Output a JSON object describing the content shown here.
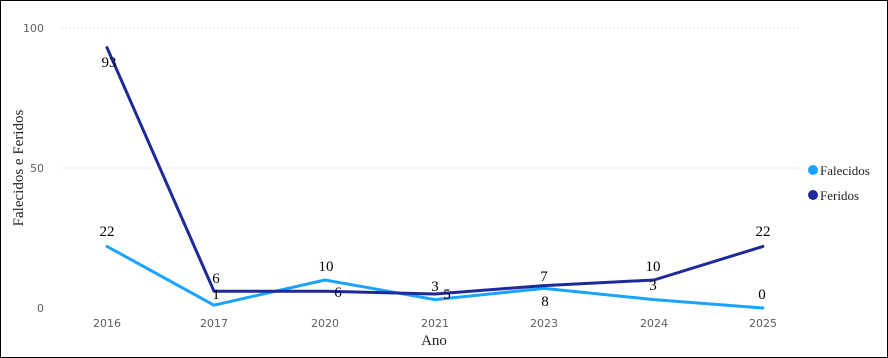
{
  "chart_data": {
    "type": "line",
    "title": "",
    "xlabel": "Ano",
    "ylabel": "Falecidos e Feridos",
    "categories": [
      "2016",
      "2017",
      "2020",
      "2021",
      "2023",
      "2024",
      "2025"
    ],
    "ylim": [
      0,
      100
    ],
    "yticks": [
      "0",
      "50",
      "100"
    ],
    "grid": true,
    "legend_position": "right",
    "series": [
      {
        "name": "Falecidos",
        "color": "#1AA3FF",
        "values": [
          22,
          1,
          10,
          3,
          7,
          3,
          0
        ],
        "labels": [
          "22",
          "1",
          "10",
          "3",
          "7",
          "3",
          "0"
        ]
      },
      {
        "name": "Feridos",
        "color": "#1F2A99",
        "values": [
          93,
          6,
          6,
          5,
          8,
          10,
          22
        ],
        "labels": [
          "93",
          "6",
          "6",
          "5",
          "8",
          "10",
          "22"
        ]
      }
    ]
  }
}
